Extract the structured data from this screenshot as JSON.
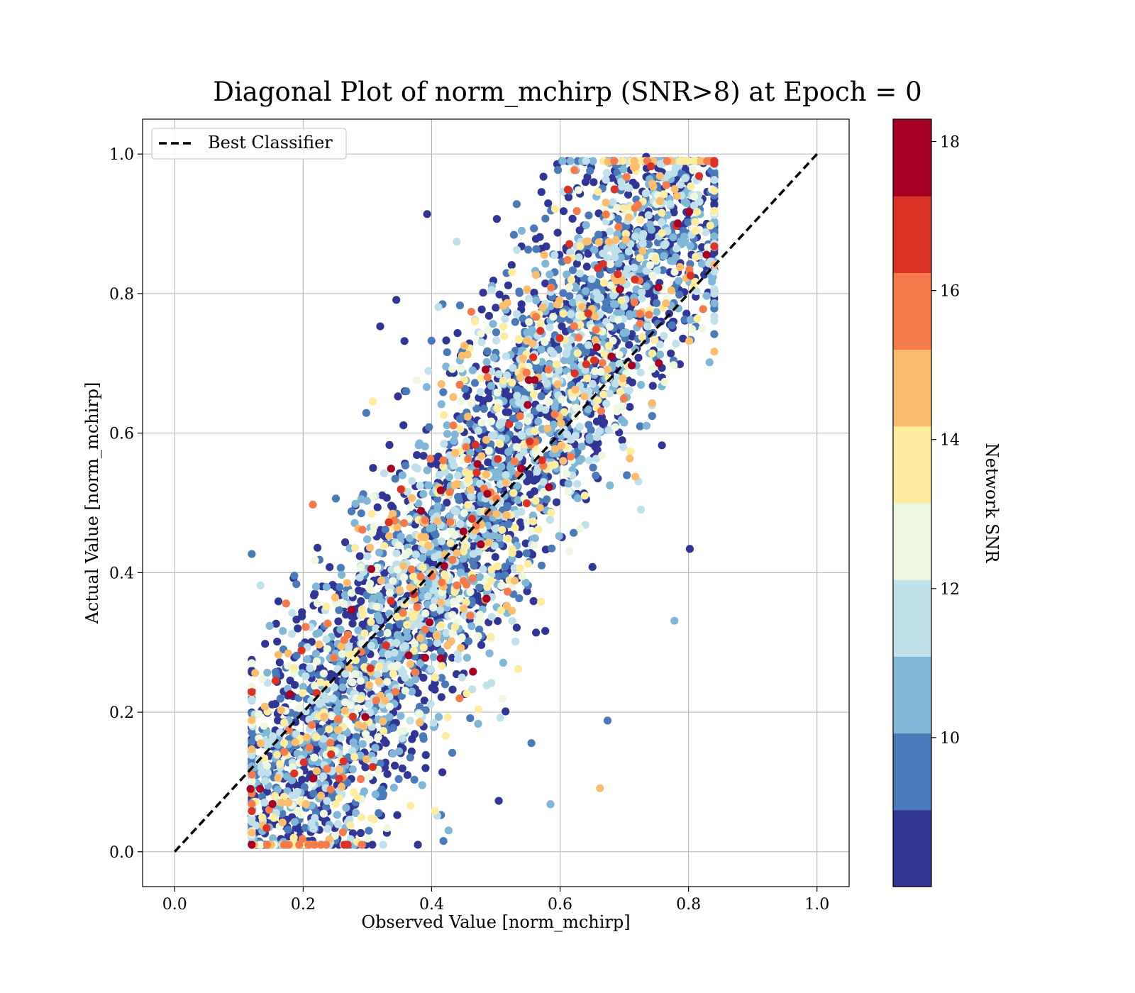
{
  "chart_data": {
    "type": "scatter",
    "title": "Diagonal Plot of norm_mchirp (SNR>8) at Epoch = 0",
    "xlabel": "Observed Value [norm_mchirp]",
    "ylabel": "Actual Value [norm_mchirp]",
    "xlim": [
      -0.05,
      1.05
    ],
    "ylim": [
      -0.05,
      1.05
    ],
    "xticks": [
      "0.0",
      "0.2",
      "0.4",
      "0.6",
      "0.8",
      "1.0"
    ],
    "yticks": [
      "0.0",
      "0.2",
      "0.4",
      "0.6",
      "0.8",
      "1.0"
    ],
    "grid": true,
    "legend": {
      "position": "upper-left",
      "entries": [
        "Best Classifier"
      ]
    },
    "reference_line": {
      "name": "Best Classifier",
      "style": "dashed",
      "color": "#000000",
      "x": [
        0.0,
        1.0
      ],
      "y": [
        0.0,
        1.0
      ]
    },
    "colorbar": {
      "label": "Network SNR",
      "range": [
        8.0,
        18.3
      ],
      "ticks": [
        "10",
        "12",
        "14",
        "16",
        "18"
      ],
      "colormap": "RdYlBu_r (discrete, 10 bins)",
      "colors": [
        "#313695",
        "#4a7ab7",
        "#80b6d6",
        "#c0e1ec",
        "#eef7e0",
        "#feeca1",
        "#fcbd6f",
        "#f57b4c",
        "#d93328",
        "#a50026"
      ]
    },
    "approximate_distribution": {
      "note": "thousands of points clustered along the diagonal between roughly 0.12 and 0.84",
      "x_range": [
        0.12,
        0.84
      ],
      "y_range": [
        0.01,
        0.99
      ]
    },
    "notable_points": [
      {
        "x": 0.118,
        "y": 0.09,
        "snr": 17.9
      },
      {
        "x": 0.133,
        "y": 0.09,
        "snr": 17.5
      },
      {
        "x": 0.143,
        "y": 0.034,
        "snr": 16.3
      },
      {
        "x": 0.393,
        "y": 0.914,
        "snr": 8.2
      },
      {
        "x": 0.345,
        "y": 0.791,
        "snr": 8.2
      },
      {
        "x": 0.32,
        "y": 0.753,
        "snr": 8.2
      },
      {
        "x": 0.484,
        "y": 0.691,
        "snr": 18.0
      },
      {
        "x": 0.693,
        "y": 0.806,
        "snr": 18.1
      },
      {
        "x": 0.657,
        "y": 0.723,
        "snr": 18.0
      },
      {
        "x": 0.39,
        "y": 0.278,
        "snr": 17.8
      },
      {
        "x": 0.662,
        "y": 0.091,
        "snr": 14.2
      },
      {
        "x": 0.802,
        "y": 0.434,
        "snr": 8.4
      },
      {
        "x": 0.778,
        "y": 0.331,
        "snr": 10.5
      },
      {
        "x": 0.674,
        "y": 0.188,
        "snr": 10.0
      },
      {
        "x": 0.585,
        "y": 0.068,
        "snr": 10.4
      },
      {
        "x": 0.284,
        "y": 0.014,
        "snr": 14.0
      },
      {
        "x": 0.734,
        "y": 0.996,
        "snr": 8.2
      },
      {
        "x": 0.835,
        "y": 0.826,
        "snr": 10.9
      }
    ]
  }
}
